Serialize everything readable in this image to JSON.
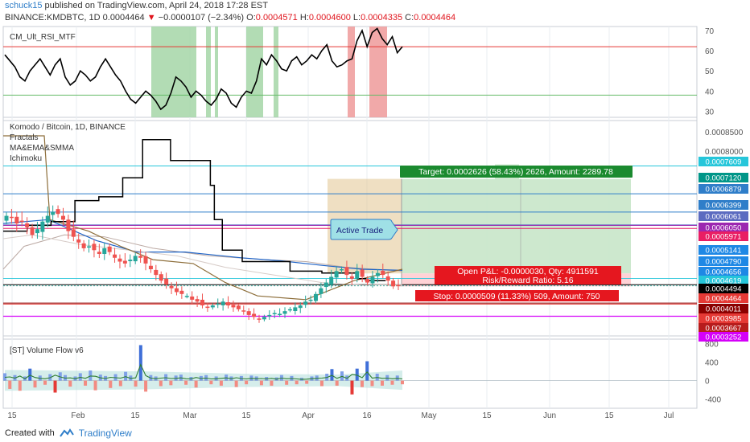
{
  "header": {
    "author": "schuck15",
    "published": "published on TradingView.com, April 24, 2018 17:28 EST",
    "symbol": "BINANCE:KMDBTC, 1D",
    "last": "0.0004464",
    "change_arrow": "▼",
    "change": "−0.0000107 (−2.34%)",
    "o_label": "O:",
    "o_value": "0.0004571",
    "h_label": "H:",
    "h_value": "0.0004600",
    "l_label": "L:",
    "l_value": "0.0004335",
    "c_label": "C:",
    "c_value": "0.0004464"
  },
  "rsi_panel": {
    "title": "CM_Ult_RSI_MTF",
    "ticks": [
      "70",
      "60",
      "50",
      "40",
      "30"
    ]
  },
  "main_panel": {
    "title": "Komodo / Bitcoin, 1D, BINANCE",
    "indicators": [
      "Fractals",
      "MA&EMA&SMMA",
      "Ichimoku"
    ],
    "price_ticks": [
      "0.0008500",
      "0.0008000"
    ],
    "price_labels": [
      {
        "text": "0.0007609",
        "bg": "#26c6da"
      },
      {
        "text": "0.0007120",
        "bg": "#009688"
      },
      {
        "text": "0.0006879",
        "bg": "#2f7ec9"
      },
      {
        "text": "0.0006399",
        "bg": "#2f7ec9"
      },
      {
        "text": "0.0006061",
        "bg": "#5c6bc0"
      },
      {
        "text": "0.0006050",
        "bg": "#9c27b0"
      },
      {
        "text": "0.0005971",
        "bg": "#e91e63"
      },
      {
        "text": "0.0005141",
        "bg": "#1e88e5"
      },
      {
        "text": "0.0004790",
        "bg": "#1e88e5"
      },
      {
        "text": "0.0004656",
        "bg": "#1e88e5"
      },
      {
        "text": "0.0004619",
        "bg": "#26c6da"
      },
      {
        "text": "0.0004494",
        "bg": "#000000"
      },
      {
        "text": "0.0004464",
        "bg": "#e53935"
      },
      {
        "text": "0.0004011",
        "bg": "#8b0000"
      },
      {
        "text": "0.0003985",
        "bg": "#e53935"
      },
      {
        "text": "0.0003667",
        "bg": "#b71c1c"
      },
      {
        "text": "0.0003252",
        "bg": "#d500f9"
      }
    ],
    "target_label": "Target: 0.0002626 (58.43%) 2626, Amount: 2289.78",
    "open_pnl_label": "Open P&L: -0.0000030, Qty: 4911591",
    "risk_reward_label": "Risk/Reward Ratio: 5.16",
    "stop_label": "Stop: 0.0000509 (11.33%) 509, Amount: 750",
    "active_trade_label": "Active Trade"
  },
  "volume_panel": {
    "title": "[ST] Volume Flow v6",
    "ticks": [
      "800",
      "400",
      "0",
      "-400"
    ]
  },
  "time_axis": [
    "15",
    "Feb",
    "15",
    "Mar",
    "15",
    "Apr",
    "16",
    "May",
    "15",
    "Jun",
    "15",
    "Jul"
  ],
  "footer": {
    "created_with": "Created with",
    "brand": "TradingView"
  },
  "colors": {
    "up": "#26a69a",
    "down": "#ef5350",
    "grid": "#e9edf2",
    "axis_text": "#555555"
  },
  "chart_data": [
    {
      "type": "line",
      "name": "CM_Ult_RSI_MTF",
      "ylim": [
        27,
        72
      ],
      "x_range": [
        0,
        100
      ],
      "values": [
        58,
        55,
        52,
        47,
        45,
        50,
        53,
        56,
        52,
        48,
        53,
        56,
        47,
        43,
        45,
        50,
        48,
        45,
        47,
        52,
        56,
        52,
        48,
        45,
        40,
        36,
        34,
        37,
        40,
        38,
        35,
        31,
        33,
        39,
        47,
        45,
        42,
        37,
        40,
        38,
        35,
        33,
        36,
        41,
        39,
        34,
        32,
        37,
        40,
        39,
        45,
        56,
        53,
        58,
        55,
        51,
        50,
        55,
        57,
        53,
        55,
        58,
        56,
        60,
        63,
        55,
        52,
        53,
        55,
        56,
        65,
        70,
        62,
        69,
        71,
        66,
        63,
        67,
        59,
        62
      ]
    },
    {
      "type": "candlestick",
      "name": "Komodo / Bitcoin, 1D, BINANCE",
      "ylim": [
        0.000315,
        0.00088
      ],
      "x_range": [
        0,
        100
      ],
      "close": [
        0.00063,
        0.000625,
        0.00061,
        0.000615,
        0.0006,
        0.00058,
        0.000595,
        0.000615,
        0.00063,
        0.00064,
        0.000635,
        0.00062,
        0.00059,
        0.000575,
        0.00056,
        0.000545,
        0.00055,
        0.00054,
        0.00053,
        0.000545,
        0.000535,
        0.00052,
        0.00051,
        0.000505,
        0.000515,
        0.000525,
        0.00052,
        0.000505,
        0.00049,
        0.000475,
        0.00046,
        0.00045,
        0.00044,
        0.00043,
        0.000425,
        0.00042,
        0.00041,
        0.000405,
        0.000395,
        0.00039,
        0.000395,
        0.0004,
        0.000405,
        0.000395,
        0.00039,
        0.000385,
        0.00038,
        0.00037,
        0.000365,
        0.00036,
        0.000365,
        0.00037,
        0.000375,
        0.000373,
        0.00038,
        0.000385,
        0.00039,
        0.000395,
        0.000405,
        0.00041,
        0.000425,
        0.00044,
        0.000455,
        0.00047,
        0.000485,
        0.00049,
        0.000475,
        0.000465,
        0.000485,
        0.00047,
        0.000455,
        0.00047,
        0.00048,
        0.000475,
        0.00046,
        0.000445,
        0.0004464
      ]
    },
    {
      "type": "line",
      "name": "Ichimoku",
      "ylim": [
        0.000315,
        0.00088
      ],
      "x_range": [
        0,
        100
      ],
      "x": [
        0,
        6,
        12,
        18,
        24,
        30,
        35,
        39,
        42,
        48,
        52,
        53,
        55,
        60,
        65,
        72,
        80,
        86,
        89,
        91,
        96
      ],
      "values": [
        0.00059,
        0.000605,
        0.000615,
        0.00067,
        0.00068,
        0.00073,
        0.00083,
        0.00083,
        0.000775,
        0.000775,
        0.00071,
        0.00062,
        0.00054,
        0.00051,
        0.00051,
        0.000485,
        0.00048,
        0.00048,
        0.000465,
        0.00046,
        0.00046
      ]
    },
    {
      "type": "bar",
      "name": "[ST] Volume Flow v6",
      "ylim": [
        -600,
        900
      ],
      "x_range": [
        0,
        100
      ],
      "values": [
        160,
        -180,
        120,
        -220,
        90,
        260,
        -150,
        110,
        -90,
        140,
        -260,
        180,
        120,
        -130,
        90,
        160,
        -110,
        220,
        -210,
        130,
        100,
        -160,
        140,
        -120,
        190,
        110,
        -130,
        770,
        -240,
        120,
        90,
        -120,
        140,
        -100,
        110,
        130,
        -90,
        80,
        -150,
        100,
        120,
        -80,
        90,
        -110,
        130,
        90,
        -140,
        100,
        -80,
        110,
        90,
        -100,
        80,
        -110,
        70,
        120,
        -90,
        100,
        -80,
        60,
        -70,
        90,
        110,
        -120,
        150,
        250,
        -110,
        200,
        110,
        -300,
        260,
        -140,
        420,
        -120,
        150,
        -110,
        120,
        -90,
        110,
        -80
      ]
    }
  ]
}
